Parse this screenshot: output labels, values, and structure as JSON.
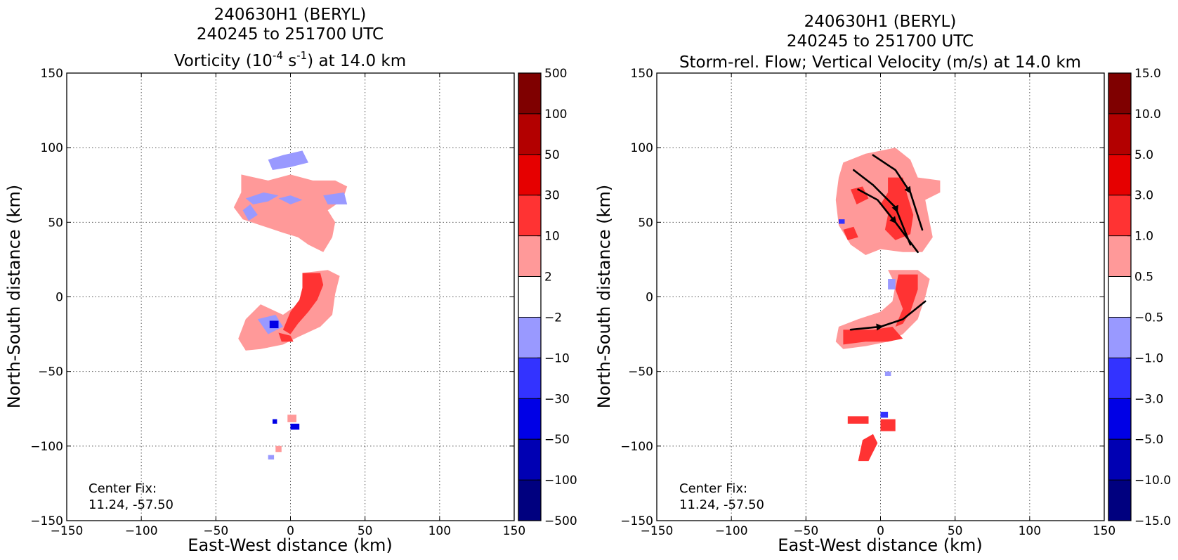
{
  "chart_data": [
    {
      "type": "heatmap",
      "title_lines": [
        "240630H1 (BERYL)",
        "240245 to 251700 UTC"
      ],
      "title_var": {
        "prefix": "Vorticity (10",
        "sup1": "-4",
        "mid": " s",
        "sup2": "-1",
        "suffix": ") at 14.0 km"
      },
      "xlabel": "East-West distance (km)",
      "ylabel": "North-South distance (km)",
      "xlim": [
        -150,
        150
      ],
      "ylim": [
        -150,
        150
      ],
      "xticks": [
        -150,
        -100,
        -50,
        0,
        50,
        100,
        150
      ],
      "yticks": [
        -150,
        -100,
        -50,
        0,
        50,
        100,
        150
      ],
      "grid": true,
      "center_fix": [
        "Center Fix:",
        "11.24, -57.50"
      ],
      "colorbar": {
        "labels": [
          "500",
          "100",
          "50",
          "30",
          "10",
          "2",
          "−2",
          "−10",
          "−30",
          "−50",
          "−100",
          "−500"
        ],
        "colors": [
          "#7f0000",
          "#b30000",
          "#e60000",
          "#ff3333",
          "#ff9999",
          "#ffffff",
          "#9999ff",
          "#3333ff",
          "#0000e6",
          "#0000b3",
          "#00007f"
        ]
      },
      "regions": [
        {
          "level": 1,
          "points": [
            [
              -33,
              82
            ],
            [
              -15,
              78
            ],
            [
              0,
              82
            ],
            [
              15,
              78
            ],
            [
              30,
              78
            ],
            [
              38,
              74
            ],
            [
              35,
              65
            ],
            [
              25,
              58
            ],
            [
              30,
              50
            ],
            [
              28,
              40
            ],
            [
              22,
              30
            ],
            [
              12,
              35
            ],
            [
              5,
              40
            ],
            [
              -5,
              43
            ],
            [
              -20,
              48
            ],
            [
              -32,
              52
            ],
            [
              -38,
              60
            ],
            [
              -33,
              70
            ]
          ]
        },
        {
          "level": -1,
          "points": [
            [
              -15,
              92
            ],
            [
              -5,
              95
            ],
            [
              8,
              98
            ],
            [
              12,
              90
            ],
            [
              0,
              87
            ],
            [
              -12,
              85
            ]
          ]
        },
        {
          "level": -1,
          "points": [
            [
              -30,
              66
            ],
            [
              -18,
              70
            ],
            [
              -8,
              68
            ],
            [
              -15,
              64
            ],
            [
              -25,
              62
            ]
          ]
        },
        {
          "level": -1,
          "points": [
            [
              -8,
              66
            ],
            [
              0,
              68
            ],
            [
              8,
              65
            ],
            [
              0,
              62
            ]
          ]
        },
        {
          "level": -1,
          "points": [
            [
              22,
              68
            ],
            [
              36,
              70
            ],
            [
              38,
              62
            ],
            [
              25,
              62
            ]
          ]
        },
        {
          "level": -1,
          "points": [
            [
              -32,
              58
            ],
            [
              -27,
              62
            ],
            [
              -22,
              55
            ],
            [
              -28,
              51
            ]
          ]
        },
        {
          "level": 1,
          "points": [
            [
              8,
              16
            ],
            [
              25,
              18
            ],
            [
              33,
              14
            ],
            [
              30,
              2
            ],
            [
              28,
              -12
            ],
            [
              20,
              -20
            ],
            [
              5,
              -27
            ],
            [
              -5,
              -32
            ],
            [
              -20,
              -35
            ],
            [
              -30,
              -36
            ],
            [
              -35,
              -28
            ],
            [
              -30,
              -15
            ],
            [
              -20,
              -5
            ],
            [
              -5,
              -12
            ],
            [
              5,
              -5
            ],
            [
              10,
              5
            ]
          ]
        },
        {
          "level": 2,
          "points": [
            [
              8,
              16
            ],
            [
              20,
              16
            ],
            [
              22,
              8
            ],
            [
              18,
              -2
            ],
            [
              12,
              -10
            ],
            [
              5,
              -18
            ],
            [
              0,
              -25
            ],
            [
              -5,
              -22
            ],
            [
              0,
              -10
            ],
            [
              6,
              -2
            ],
            [
              8,
              6
            ]
          ]
        },
        {
          "level": 2,
          "points": [
            [
              -8,
              -24
            ],
            [
              0,
              -26
            ],
            [
              2,
              -30
            ],
            [
              -6,
              -30
            ]
          ]
        },
        {
          "level": -1,
          "points": [
            [
              -22,
              -15
            ],
            [
              -10,
              -12
            ],
            [
              -5,
              -20
            ],
            [
              -15,
              -25
            ]
          ]
        },
        {
          "level": -3,
          "points": [
            [
              -14,
              -16
            ],
            [
              -8,
              -16
            ],
            [
              -8,
              -21
            ],
            [
              -14,
              -21
            ]
          ]
        },
        {
          "level": 1,
          "points": [
            [
              -2,
              -79
            ],
            [
              4,
              -79
            ],
            [
              4,
              -84
            ],
            [
              -2,
              -84
            ]
          ]
        },
        {
          "level": -3,
          "points": [
            [
              0,
              -85
            ],
            [
              6,
              -85
            ],
            [
              6,
              -89
            ],
            [
              0,
              -89
            ]
          ]
        },
        {
          "level": -3,
          "points": [
            [
              -12,
              -82
            ],
            [
              -9,
              -82
            ],
            [
              -9,
              -85
            ],
            [
              -12,
              -85
            ]
          ]
        },
        {
          "level": 1,
          "points": [
            [
              -10,
              -100
            ],
            [
              -6,
              -100
            ],
            [
              -6,
              -104
            ],
            [
              -10,
              -104
            ]
          ]
        },
        {
          "level": -1,
          "points": [
            [
              -15,
              -106
            ],
            [
              -11,
              -106
            ],
            [
              -11,
              -109
            ],
            [
              -15,
              -109
            ]
          ]
        }
      ]
    },
    {
      "type": "heatmap",
      "title_lines": [
        "240630H1 (BERYL)",
        "240245 to 251700 UTC",
        "Storm-rel. Flow; Vertical Velocity (m/s) at 14.0 km"
      ],
      "xlabel": "East-West distance (km)",
      "ylabel": "North-South distance (km)",
      "xlim": [
        -150,
        150
      ],
      "ylim": [
        -150,
        150
      ],
      "xticks": [
        -150,
        -100,
        -50,
        0,
        50,
        100,
        150
      ],
      "yticks": [
        -150,
        -100,
        -50,
        0,
        50,
        100,
        150
      ],
      "grid": true,
      "center_fix": [
        "Center Fix:",
        "11.24, -57.50"
      ],
      "colorbar": {
        "labels": [
          "15.0",
          "10.0",
          "5.0",
          "3.0",
          "1.0",
          "0.5",
          "−0.5",
          "−1.0",
          "−3.0",
          "−5.0",
          "−10.0",
          "−15.0"
        ],
        "colors": [
          "#7f0000",
          "#b30000",
          "#e60000",
          "#ff3333",
          "#ff9999",
          "#ffffff",
          "#9999ff",
          "#3333ff",
          "#0000e6",
          "#0000b3",
          "#00007f"
        ]
      },
      "regions": [
        {
          "level": 1,
          "points": [
            [
              -25,
              90
            ],
            [
              -10,
              96
            ],
            [
              10,
              100
            ],
            [
              20,
              92
            ],
            [
              25,
              80
            ],
            [
              40,
              78
            ],
            [
              40,
              70
            ],
            [
              30,
              65
            ],
            [
              32,
              55
            ],
            [
              35,
              40
            ],
            [
              28,
              30
            ],
            [
              15,
              30
            ],
            [
              0,
              32
            ],
            [
              -10,
              28
            ],
            [
              -20,
              35
            ],
            [
              -28,
              48
            ],
            [
              -30,
              65
            ],
            [
              -28,
              80
            ]
          ]
        },
        {
          "level": 2,
          "points": [
            [
              5,
              80
            ],
            [
              15,
              80
            ],
            [
              18,
              68
            ],
            [
              22,
              55
            ],
            [
              20,
              42
            ],
            [
              10,
              38
            ],
            [
              3,
              45
            ],
            [
              5,
              55
            ],
            [
              0,
              62
            ],
            [
              5,
              70
            ]
          ]
        },
        {
          "level": 2,
          "points": [
            [
              -20,
              72
            ],
            [
              -12,
              74
            ],
            [
              -8,
              66
            ],
            [
              -16,
              62
            ]
          ]
        },
        {
          "level": 2,
          "points": [
            [
              -25,
              45
            ],
            [
              -18,
              47
            ],
            [
              -15,
              40
            ],
            [
              -22,
              38
            ]
          ]
        },
        {
          "level": 1,
          "points": [
            [
              5,
              18
            ],
            [
              25,
              18
            ],
            [
              33,
              12
            ],
            [
              30,
              0
            ],
            [
              25,
              -15
            ],
            [
              15,
              -25
            ],
            [
              5,
              -30
            ],
            [
              -10,
              -33
            ],
            [
              -25,
              -35
            ],
            [
              -30,
              -30
            ],
            [
              -28,
              -20
            ],
            [
              -15,
              -15
            ],
            [
              0,
              -10
            ],
            [
              8,
              -3
            ],
            [
              10,
              8
            ]
          ]
        },
        {
          "level": 2,
          "points": [
            [
              12,
              15
            ],
            [
              25,
              15
            ],
            [
              25,
              5
            ],
            [
              20,
              -10
            ],
            [
              15,
              -18
            ],
            [
              10,
              -20
            ],
            [
              15,
              -8
            ],
            [
              10,
              5
            ]
          ]
        },
        {
          "level": 2,
          "points": [
            [
              -25,
              -22
            ],
            [
              -5,
              -22
            ],
            [
              8,
              -20
            ],
            [
              15,
              -28
            ],
            [
              5,
              -30
            ],
            [
              -10,
              -30
            ],
            [
              -25,
              -32
            ]
          ]
        },
        {
          "level": -1,
          "points": [
            [
              5,
              12
            ],
            [
              10,
              12
            ],
            [
              10,
              5
            ],
            [
              5,
              5
            ]
          ]
        },
        {
          "level": -2,
          "points": [
            [
              -28,
              52
            ],
            [
              -24,
              52
            ],
            [
              -24,
              49
            ],
            [
              -28,
              49
            ]
          ]
        },
        {
          "level": 2,
          "points": [
            [
              -22,
              -80
            ],
            [
              -8,
              -80
            ],
            [
              -8,
              -85
            ],
            [
              -22,
              -85
            ]
          ]
        },
        {
          "level": 2,
          "points": [
            [
              0,
              -82
            ],
            [
              10,
              -82
            ],
            [
              10,
              -90
            ],
            [
              0,
              -90
            ]
          ]
        },
        {
          "level": -2,
          "points": [
            [
              0,
              -77
            ],
            [
              5,
              -77
            ],
            [
              5,
              -81
            ],
            [
              0,
              -81
            ]
          ]
        },
        {
          "level": 2,
          "points": [
            [
              -12,
              -96
            ],
            [
              -5,
              -92
            ],
            [
              -2,
              -98
            ],
            [
              -8,
              -110
            ],
            [
              -15,
              -110
            ]
          ]
        },
        {
          "level": -1,
          "points": [
            [
              3,
              -50
            ],
            [
              7,
              -50
            ],
            [
              7,
              -53
            ],
            [
              3,
              -53
            ]
          ]
        }
      ],
      "streamlines": [
        {
          "points": [
            [
              -5,
              95
            ],
            [
              10,
              85
            ],
            [
              20,
              70
            ],
            [
              28,
              45
            ]
          ],
          "arrow_at": 0.55
        },
        {
          "points": [
            [
              -18,
              85
            ],
            [
              -5,
              75
            ],
            [
              10,
              60
            ],
            [
              20,
              35
            ]
          ],
          "arrow_at": 0.6
        },
        {
          "points": [
            [
              -15,
              72
            ],
            [
              -2,
              65
            ],
            [
              10,
              50
            ],
            [
              25,
              30
            ]
          ],
          "arrow_at": 0.55
        },
        {
          "points": [
            [
              -20,
              -22
            ],
            [
              0,
              -20
            ],
            [
              15,
              -15
            ],
            [
              30,
              -3
            ]
          ],
          "arrow_at": 0.35
        }
      ]
    }
  ]
}
